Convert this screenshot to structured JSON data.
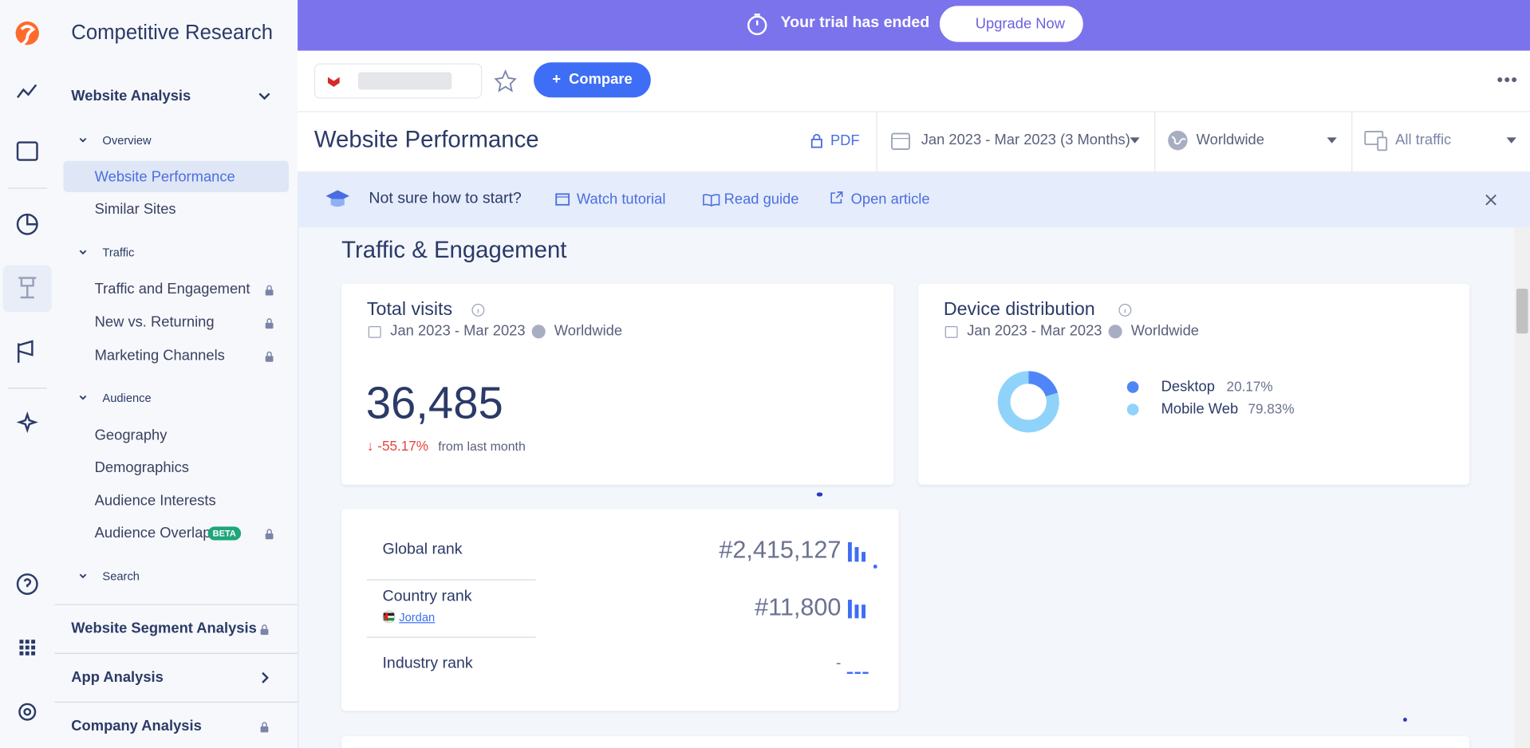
{
  "app": {
    "title": "Competitive Research"
  },
  "nav": {
    "website_analysis": "Website Analysis",
    "overview": "Overview",
    "website_performance": "Website Performance",
    "similar_sites": "Similar Sites",
    "traffic": "Traffic",
    "traffic_engagement": "Traffic and Engagement",
    "new_vs_returning": "New vs. Returning",
    "marketing_channels": "Marketing Channels",
    "audience": "Audience",
    "geography": "Geography",
    "demographics": "Demographics",
    "audience_interests": "Audience Interests",
    "audience_overlap": "Audience Overlap",
    "beta": "BETA",
    "search": "Search",
    "website_segment_analysis": "Website Segment Analysis",
    "app_analysis": "App Analysis",
    "company_analysis": "Company Analysis"
  },
  "banner": {
    "message": "Your trial has ended",
    "button": "Upgrade Now"
  },
  "toolbar": {
    "compare": "Compare"
  },
  "header": {
    "title": "Website Performance",
    "pdf": "PDF",
    "date_range": "Jan 2023 - Mar 2023 (3 Months)",
    "country": "Worldwide",
    "traffic": "All traffic"
  },
  "hint": {
    "question": "Not sure how to start?",
    "watch": "Watch tutorial",
    "read": "Read guide",
    "open": "Open article"
  },
  "section_title": "Traffic & Engagement",
  "total_visits": {
    "title": "Total visits",
    "date": "Jan 2023 - Mar 2023",
    "region": "Worldwide",
    "value": "36,485",
    "change": "-55.17%",
    "change_note": "from last month"
  },
  "device_distribution": {
    "title": "Device distribution",
    "date": "Jan 2023 - Mar 2023",
    "region": "Worldwide",
    "devices": [
      {
        "name": "Desktop",
        "value": 20.17,
        "value_label": "20.17%",
        "color": "#4f86f7"
      },
      {
        "name": "Mobile Web",
        "value": 79.83,
        "value_label": "79.83%",
        "color": "#8fd3fb"
      }
    ]
  },
  "ranks": {
    "global_label": "Global rank",
    "global_value": "#2,415,127",
    "country_label": "Country rank",
    "country_name": "Jordan",
    "country_value": "#11,800",
    "industry_label": "Industry rank",
    "industry_value": "-"
  }
}
